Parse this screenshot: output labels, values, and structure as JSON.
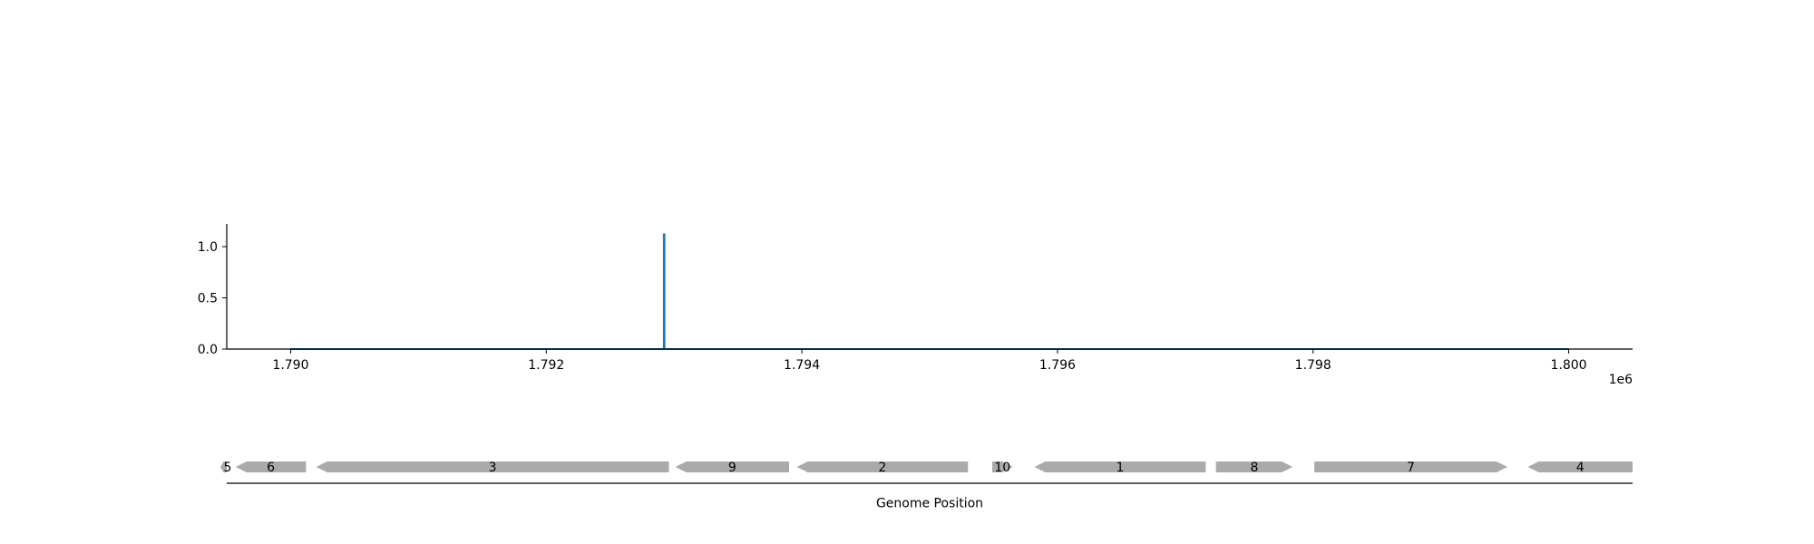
{
  "chart_data": [
    {
      "type": "line",
      "title": "",
      "xlabel": "",
      "ylabel": "",
      "x_offset_label": "1e6",
      "xlim": [
        1789500,
        1800500
      ],
      "ylim": [
        0,
        1.25
      ],
      "grid": false,
      "xticks": [
        1790000,
        1792000,
        1794000,
        1796000,
        1798000,
        1800000
      ],
      "xtick_labels": [
        "1.790",
        "1.792",
        "1.794",
        "1.796",
        "1.798",
        "1.800"
      ],
      "yticks": [
        0.0,
        0.5,
        1.0
      ],
      "ytick_labels": [
        "0.0",
        "0.5",
        "1.0"
      ],
      "series": [
        {
          "color": "#1f77b4",
          "points": [
            [
              1790000,
              0
            ],
            [
              1792920,
              0
            ],
            [
              1792920,
              1.12
            ],
            [
              1792925,
              1.12
            ],
            [
              1792925,
              0
            ],
            [
              1800000,
              0
            ]
          ]
        }
      ]
    },
    {
      "type": "gene_track",
      "xlabel": "Genome Position",
      "xlim": [
        1789500,
        1800500
      ],
      "color": "#aaaaaa",
      "genes": [
        {
          "label": "5",
          "start": 1789450,
          "end": 1789500,
          "strand": "-"
        },
        {
          "label": "6",
          "start": 1789570,
          "end": 1790120,
          "strand": "-"
        },
        {
          "label": "3",
          "start": 1790200,
          "end": 1792960,
          "strand": "-"
        },
        {
          "label": "9",
          "start": 1793010,
          "end": 1793900,
          "strand": "-"
        },
        {
          "label": "2",
          "start": 1793960,
          "end": 1795300,
          "strand": "-"
        },
        {
          "label": "10",
          "start": 1795490,
          "end": 1795650,
          "strand": "+"
        },
        {
          "label": "1",
          "start": 1795820,
          "end": 1797160,
          "strand": "-"
        },
        {
          "label": "8",
          "start": 1797240,
          "end": 1797840,
          "strand": "+"
        },
        {
          "label": "7",
          "start": 1798010,
          "end": 1799520,
          "strand": "+"
        },
        {
          "label": "4",
          "start": 1799680,
          "end": 1800500,
          "strand": "-"
        }
      ]
    }
  ]
}
